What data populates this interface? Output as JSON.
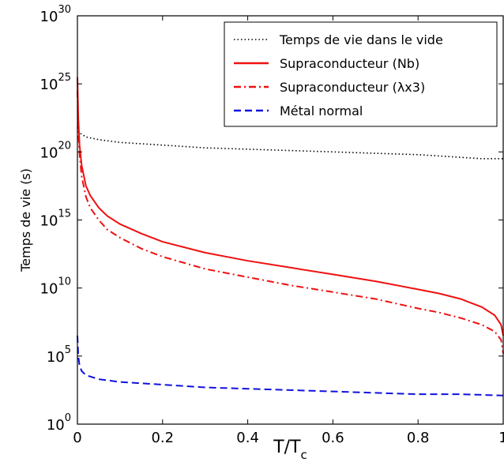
{
  "chart_data": {
    "type": "line",
    "xlabel": "T/T",
    "xlabel_subscript": "c",
    "ylabel": "Temps de vie (s)",
    "xlim": [
      0,
      1
    ],
    "ylim_log10": [
      0,
      30
    ],
    "yscale": "log",
    "x_ticks": [
      0,
      0.2,
      0.4,
      0.6,
      0.8,
      1.0
    ],
    "x_tick_labels": [
      "0",
      "0.2",
      "0.4",
      "0.6",
      "0.8",
      "1"
    ],
    "y_ticks_log10": [
      0,
      5,
      10,
      15,
      20,
      25,
      30
    ],
    "y_tick_base": "10",
    "y_tick_exponents": [
      "0",
      "5",
      "10",
      "15",
      "20",
      "25",
      "30"
    ],
    "legend_position": "top-right",
    "grid": false,
    "series": [
      {
        "name": "Temps de vie dans le vide",
        "color": "#000000",
        "dash": "dotted",
        "x": [
          0,
          0.002,
          0.005,
          0.01,
          0.02,
          0.05,
          0.1,
          0.2,
          0.3,
          0.4,
          0.5,
          0.6,
          0.7,
          0.8,
          0.9,
          0.95,
          1.0
        ],
        "log10_y": [
          21.8,
          21.5,
          21.4,
          21.3,
          21.1,
          20.9,
          20.7,
          20.5,
          20.3,
          20.2,
          20.1,
          20.0,
          19.9,
          19.8,
          19.6,
          19.5,
          19.5
        ]
      },
      {
        "name": "Supraconducteur (Nb)",
        "color": "#ee1111",
        "dash": "solid",
        "x": [
          0,
          0.002,
          0.005,
          0.01,
          0.02,
          0.03,
          0.05,
          0.07,
          0.1,
          0.15,
          0.2,
          0.3,
          0.4,
          0.5,
          0.6,
          0.7,
          0.8,
          0.85,
          0.9,
          0.95,
          0.98,
          0.995,
          1.0
        ],
        "log10_y": [
          25.5,
          22.5,
          20.5,
          19.0,
          17.5,
          16.8,
          15.9,
          15.3,
          14.7,
          14.0,
          13.4,
          12.6,
          12.0,
          11.5,
          11.0,
          10.5,
          9.9,
          9.6,
          9.2,
          8.6,
          8.0,
          7.3,
          6.5
        ]
      },
      {
        "name": "Supraconducteur (λx3)",
        "color": "#ee1111",
        "dash": "dashdot",
        "x": [
          0,
          0.002,
          0.005,
          0.01,
          0.02,
          0.03,
          0.05,
          0.07,
          0.1,
          0.15,
          0.2,
          0.3,
          0.4,
          0.5,
          0.6,
          0.7,
          0.8,
          0.85,
          0.9,
          0.95,
          0.98,
          0.995,
          1.0
        ],
        "log10_y": [
          24.5,
          21.5,
          19.8,
          18.2,
          16.7,
          15.9,
          15.0,
          14.3,
          13.7,
          12.9,
          12.3,
          11.4,
          10.8,
          10.2,
          9.7,
          9.2,
          8.5,
          8.2,
          7.8,
          7.3,
          6.8,
          6.2,
          5.2
        ]
      },
      {
        "name": "Métal normal",
        "color": "#1111dd",
        "dash": "dashed",
        "x": [
          0,
          0.002,
          0.005,
          0.01,
          0.02,
          0.05,
          0.1,
          0.2,
          0.3,
          0.4,
          0.5,
          0.6,
          0.7,
          0.8,
          0.9,
          1.0
        ],
        "log10_y": [
          6.5,
          5.0,
          4.3,
          3.9,
          3.6,
          3.3,
          3.1,
          2.9,
          2.7,
          2.6,
          2.5,
          2.4,
          2.3,
          2.2,
          2.2,
          2.1
        ]
      }
    ]
  }
}
